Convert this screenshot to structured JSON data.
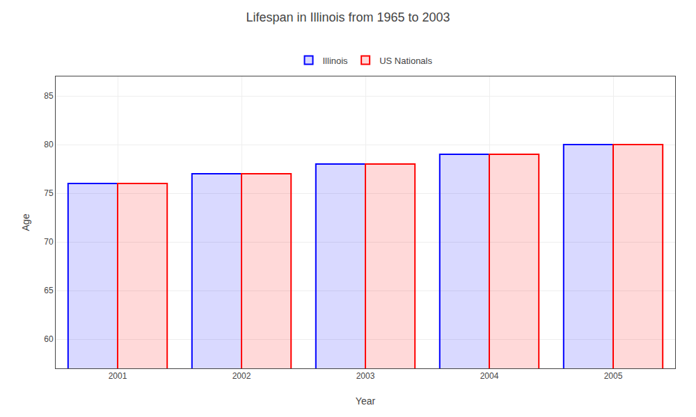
{
  "chart_data": {
    "type": "bar",
    "title": "Lifespan in Illinois from 1965 to 2003",
    "xlabel": "Year",
    "ylabel": "Age",
    "categories": [
      "2001",
      "2002",
      "2003",
      "2004",
      "2005"
    ],
    "series": [
      {
        "name": "Illinois",
        "color": "#0000ff",
        "values": [
          76,
          77,
          78,
          79,
          80
        ]
      },
      {
        "name": "US Nationals",
        "color": "#ff0000",
        "values": [
          76,
          77,
          78,
          79,
          80
        ]
      }
    ],
    "ylim": [
      57,
      87
    ],
    "yticks": [
      60,
      65,
      70,
      75,
      80,
      85
    ],
    "grid": true,
    "legend": "upper center"
  }
}
